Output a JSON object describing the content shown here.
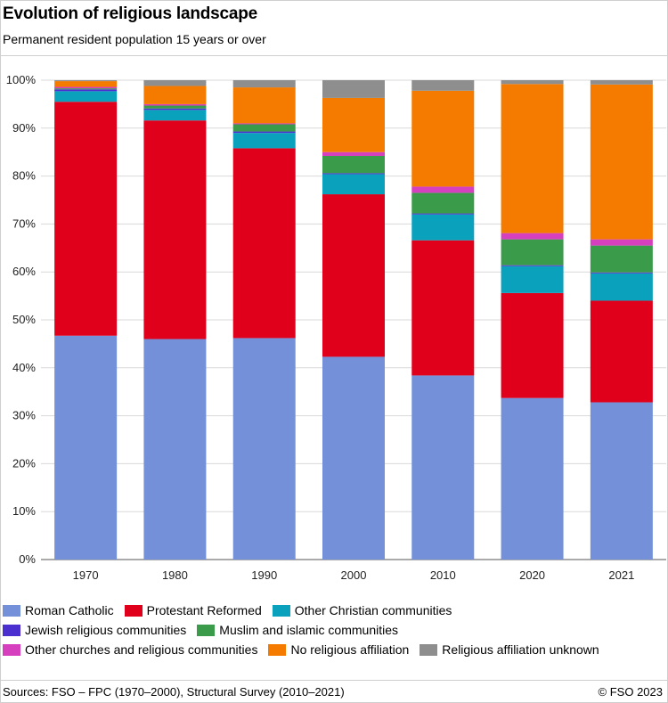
{
  "header": {
    "title": "Evolution of religious landscape",
    "subtitle": "Permanent resident population 15 years or over"
  },
  "footer": {
    "source": "Sources: FSO – FPC (1970–2000), Structural Survey (2010–2021)",
    "credit": "© FSO 2023"
  },
  "chart_data": {
    "type": "bar",
    "stacked": true,
    "title": "Evolution of religious landscape",
    "subtitle": "Permanent resident population 15 years or over",
    "categories": [
      "1970",
      "1980",
      "1990",
      "2000",
      "2010",
      "2020",
      "2021"
    ],
    "ylim": [
      0,
      100
    ],
    "yticks": [
      "0%",
      "10%",
      "20%",
      "30%",
      "40%",
      "50%",
      "60%",
      "70%",
      "80%",
      "90%",
      "100%"
    ],
    "grid": true,
    "legend_position": "bottom",
    "series": [
      {
        "name": "Roman Catholic",
        "color": "#7390d9",
        "values": [
          46.7,
          46.0,
          46.2,
          42.3,
          38.4,
          33.7,
          32.8
        ]
      },
      {
        "name": "Protestant Reformed",
        "color": "#e0001b",
        "values": [
          48.8,
          45.6,
          39.6,
          33.9,
          28.2,
          21.9,
          21.2
        ]
      },
      {
        "name": "Other Christian communities",
        "color": "#0aa1bd",
        "values": [
          2.2,
          2.2,
          3.2,
          4.2,
          5.4,
          5.6,
          5.7
        ]
      },
      {
        "name": "Jewish religious communities",
        "color": "#4b30cf",
        "values": [
          0.4,
          0.3,
          0.3,
          0.2,
          0.2,
          0.2,
          0.2
        ]
      },
      {
        "name": "Muslim and islamic communities",
        "color": "#3a9c4a",
        "values": [
          0.2,
          0.6,
          1.5,
          3.6,
          4.3,
          5.4,
          5.6
        ]
      },
      {
        "name": "Other churches and religious communities",
        "color": "#d63fbe",
        "values": [
          0.3,
          0.3,
          0.2,
          0.8,
          1.3,
          1.3,
          1.3
        ]
      },
      {
        "name": "No religious affiliation",
        "color": "#f47b00",
        "values": [
          1.2,
          3.8,
          7.5,
          11.3,
          20.0,
          31.1,
          32.3
        ]
      },
      {
        "name": "Religious affiliation unknown",
        "color": "#8e8e8e",
        "values": [
          0.2,
          1.2,
          1.5,
          3.7,
          2.2,
          0.8,
          0.9
        ]
      }
    ],
    "legend_rows": [
      [
        0,
        1,
        2
      ],
      [
        3,
        4
      ],
      [
        5,
        6,
        7
      ]
    ]
  }
}
